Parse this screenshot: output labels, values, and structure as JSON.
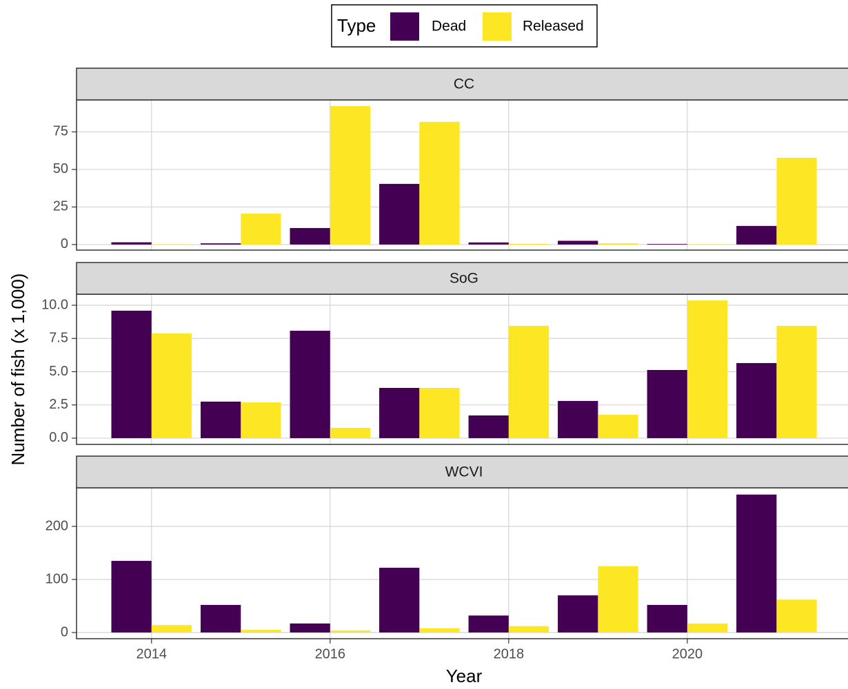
{
  "chart_data": {
    "type": "bar",
    "legend_title": "Type",
    "xlabel": "Year",
    "ylabel": "Number of fish (x 1,000)",
    "x": [
      2014,
      2015,
      2016,
      2017,
      2018,
      2019,
      2020,
      2021
    ],
    "xlim": [
      2013.16,
      2021.8
    ],
    "xticks": [
      2014,
      2016,
      2018,
      2020
    ],
    "grid": true,
    "facets": [
      {
        "title": "CC",
        "ylim": [
          -3.7,
          96.3
        ],
        "yticks": [
          0,
          25,
          50,
          75
        ],
        "series": [
          {
            "name": "Dead",
            "color": "#440154",
            "values": [
              1.5,
              0.8,
              11,
              40.4,
              1.4,
              2.5,
              0.4,
              12.4
            ]
          },
          {
            "name": "Released",
            "color": "#FDE725",
            "values": [
              0.2,
              20.6,
              92.2,
              81.7,
              0.5,
              0.8,
              0.2,
              57.8
            ]
          }
        ]
      },
      {
        "title": "SoG",
        "ylim": [
          -0.47,
          10.83
        ],
        "yticks": [
          {
            "value": 0,
            "label": "0.0"
          },
          2.5,
          {
            "value": 5,
            "label": "5.0"
          },
          7.5,
          {
            "value": 10,
            "label": "10.0"
          }
        ],
        "series": [
          {
            "name": "Dead",
            "color": "#440154",
            "values": [
              9.59,
              2.75,
              8.08,
              3.78,
              1.71,
              2.8,
              5.13,
              5.65
            ]
          },
          {
            "name": "Released",
            "color": "#FDE725",
            "values": [
              7.88,
              2.69,
              0.78,
              3.78,
              8.45,
              1.76,
              10.36,
              8.45
            ]
          }
        ]
      },
      {
        "title": "WCVI",
        "ylim": [
          -11.7,
          272.7
        ],
        "yticks": [
          0,
          100,
          200
        ],
        "series": [
          {
            "name": "Dead",
            "color": "#440154",
            "values": [
              135,
              52,
              17,
              122,
              32,
              70,
              52,
              260
            ]
          },
          {
            "name": "Released",
            "color": "#FDE725",
            "values": [
              14,
              5,
              4,
              8,
              12,
              125,
              17,
              62
            ]
          }
        ]
      }
    ]
  }
}
